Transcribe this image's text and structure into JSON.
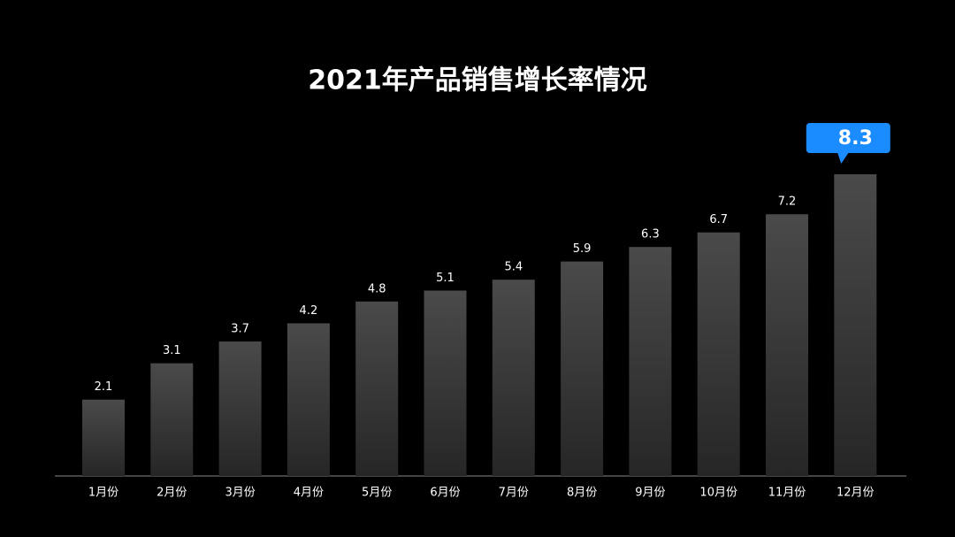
{
  "chart_data": {
    "type": "bar",
    "title": "2021年产品销售增长率情况",
    "categories": [
      "1月份",
      "2月份",
      "3月份",
      "4月份",
      "5月份",
      "6月份",
      "7月份",
      "8月份",
      "9月份",
      "10月份",
      "11月份",
      "12月份"
    ],
    "values": [
      2.1,
      3.1,
      3.7,
      4.2,
      4.8,
      5.1,
      5.4,
      5.9,
      6.3,
      6.7,
      7.2,
      8.3
    ],
    "color": "#444444",
    "highlight_color": "#1a8cff"
  }
}
